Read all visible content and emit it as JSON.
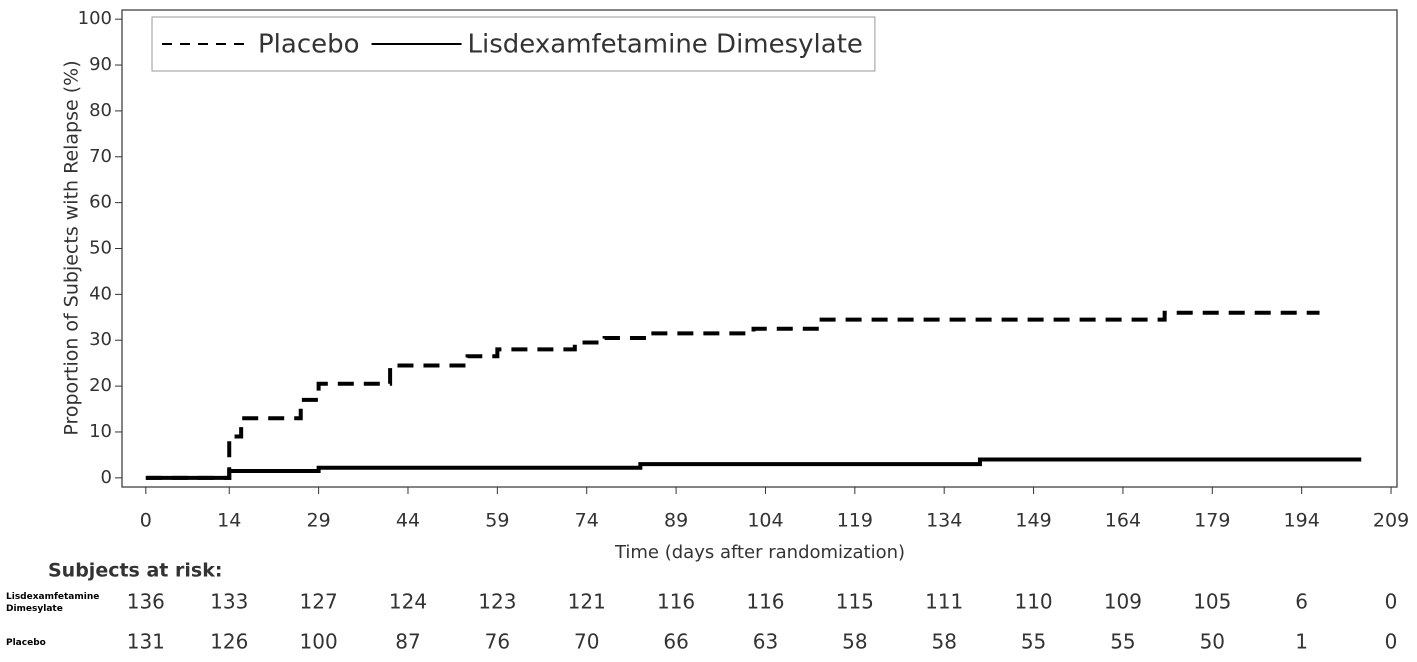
{
  "chart_data": {
    "type": "line",
    "step": "post",
    "xlabel": "Time (days after randomization)",
    "ylabel": "Proportion of Subjects with Relapse (%)",
    "xlim": [
      -4,
      210
    ],
    "ylim": [
      -2,
      102
    ],
    "xticks": [
      0,
      14,
      29,
      44,
      59,
      74,
      89,
      104,
      119,
      134,
      149,
      164,
      179,
      194,
      209
    ],
    "yticks": [
      0,
      10,
      20,
      30,
      40,
      50,
      60,
      70,
      80,
      90,
      100
    ],
    "legend": "upper left",
    "series": [
      {
        "name": "Placebo",
        "color": "#000000",
        "dash": true,
        "x": [
          0,
          14,
          16,
          26,
          29,
          41,
          54,
          59,
          72,
          77,
          84,
          102,
          113,
          171,
          197
        ],
        "values": [
          0,
          9,
          13,
          17,
          20.5,
          24.5,
          26.5,
          28,
          29.5,
          30.5,
          31.5,
          32.5,
          34.5,
          36,
          36
        ]
      },
      {
        "name": "Lisdexamfetamine Dimesylate",
        "color": "#000000",
        "dash": false,
        "x": [
          0,
          14,
          29,
          83,
          140,
          204
        ],
        "values": [
          0,
          1.5,
          2.2,
          3,
          4,
          4
        ]
      }
    ],
    "risk_table": {
      "title": "Subjects at risk:",
      "rows": [
        {
          "name": "Lisdexamfetamine Dimesylate",
          "values": [
            136,
            133,
            127,
            124,
            123,
            121,
            116,
            116,
            115,
            111,
            110,
            109,
            105,
            6,
            0
          ]
        },
        {
          "name": "Placebo",
          "values": [
            131,
            126,
            100,
            87,
            76,
            70,
            66,
            63,
            58,
            58,
            55,
            55,
            50,
            1,
            0
          ]
        }
      ]
    }
  }
}
